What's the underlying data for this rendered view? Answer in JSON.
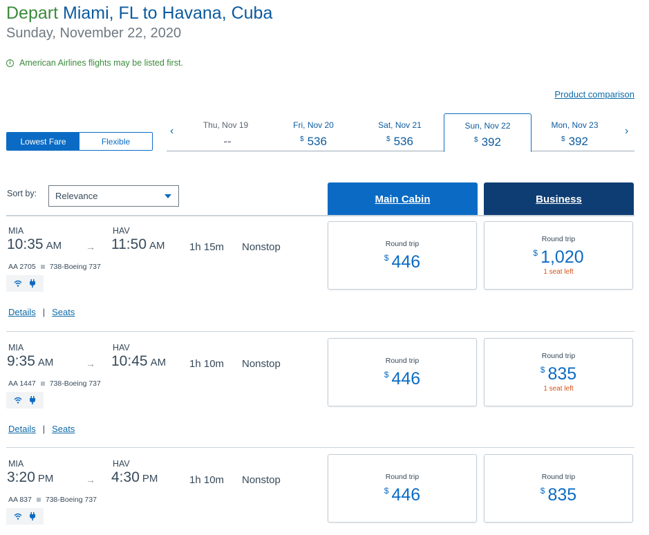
{
  "header": {
    "depart_word": "Depart",
    "route": " Miami, FL to Havana, Cuba",
    "date": "Sunday, November 22, 2020",
    "notice": "American Airlines flights may be listed first.",
    "info_icon": "i",
    "product_comparison": "Product comparison"
  },
  "fare_toggle": {
    "lowest": "Lowest Fare",
    "flexible": "Flexible"
  },
  "date_bar": {
    "prev_icon": "‹",
    "next_icon": "›",
    "days": [
      {
        "label": "Thu, Nov 19",
        "currency": "",
        "price": "--"
      },
      {
        "label": "Fri, Nov 20",
        "currency": "$",
        "price": "536"
      },
      {
        "label": "Sat, Nov 21",
        "currency": "$",
        "price": "536"
      },
      {
        "label": "Sun, Nov 22",
        "currency": "$",
        "price": "392"
      },
      {
        "label": "Mon, Nov 23",
        "currency": "$",
        "price": "392"
      }
    ]
  },
  "sort": {
    "label": "Sort by:",
    "value": "Relevance"
  },
  "cabins": {
    "main": "Main Cabin",
    "business": "Business"
  },
  "flights": [
    {
      "origin": "MIA",
      "dest": "HAV",
      "dep_time": "10:35",
      "dep_ampm": "AM",
      "arr_time": "11:50",
      "arr_ampm": "AM",
      "duration": "1h  15m",
      "stops": "Nonstop",
      "flight_no": "AA 2705",
      "aircraft": "738-Boeing 737",
      "details": "Details",
      "seats_link": "Seats",
      "main": {
        "label": "Round trip",
        "currency": "$",
        "price": "446",
        "seats_left": ""
      },
      "business": {
        "label": "Round trip",
        "currency": "$",
        "price": "1,020",
        "seats_left": "1 seat left"
      }
    },
    {
      "origin": "MIA",
      "dest": "HAV",
      "dep_time": "9:35",
      "dep_ampm": "AM",
      "arr_time": "10:45",
      "arr_ampm": "AM",
      "duration": "1h  10m",
      "stops": "Nonstop",
      "flight_no": "AA 1447",
      "aircraft": "738-Boeing 737",
      "details": "Details",
      "seats_link": "Seats",
      "main": {
        "label": "Round trip",
        "currency": "$",
        "price": "446",
        "seats_left": ""
      },
      "business": {
        "label": "Round trip",
        "currency": "$",
        "price": "835",
        "seats_left": "1 seat left"
      }
    },
    {
      "origin": "MIA",
      "dest": "HAV",
      "dep_time": "3:20",
      "dep_ampm": "PM",
      "arr_time": "4:30",
      "arr_ampm": "PM",
      "duration": "1h  10m",
      "stops": "Nonstop",
      "flight_no": "AA 837",
      "aircraft": "738-Boeing 737",
      "details": "",
      "seats_link": "",
      "main": {
        "label": "Round trip",
        "currency": "$",
        "price": "446",
        "seats_left": ""
      },
      "business": {
        "label": "Round trip",
        "currency": "$",
        "price": "835",
        "seats_left": ""
      }
    }
  ],
  "colors": {
    "accent": "#0b6bc4",
    "business": "#0e3d73",
    "green": "#3b8a3b",
    "warning": "#d2541b"
  }
}
